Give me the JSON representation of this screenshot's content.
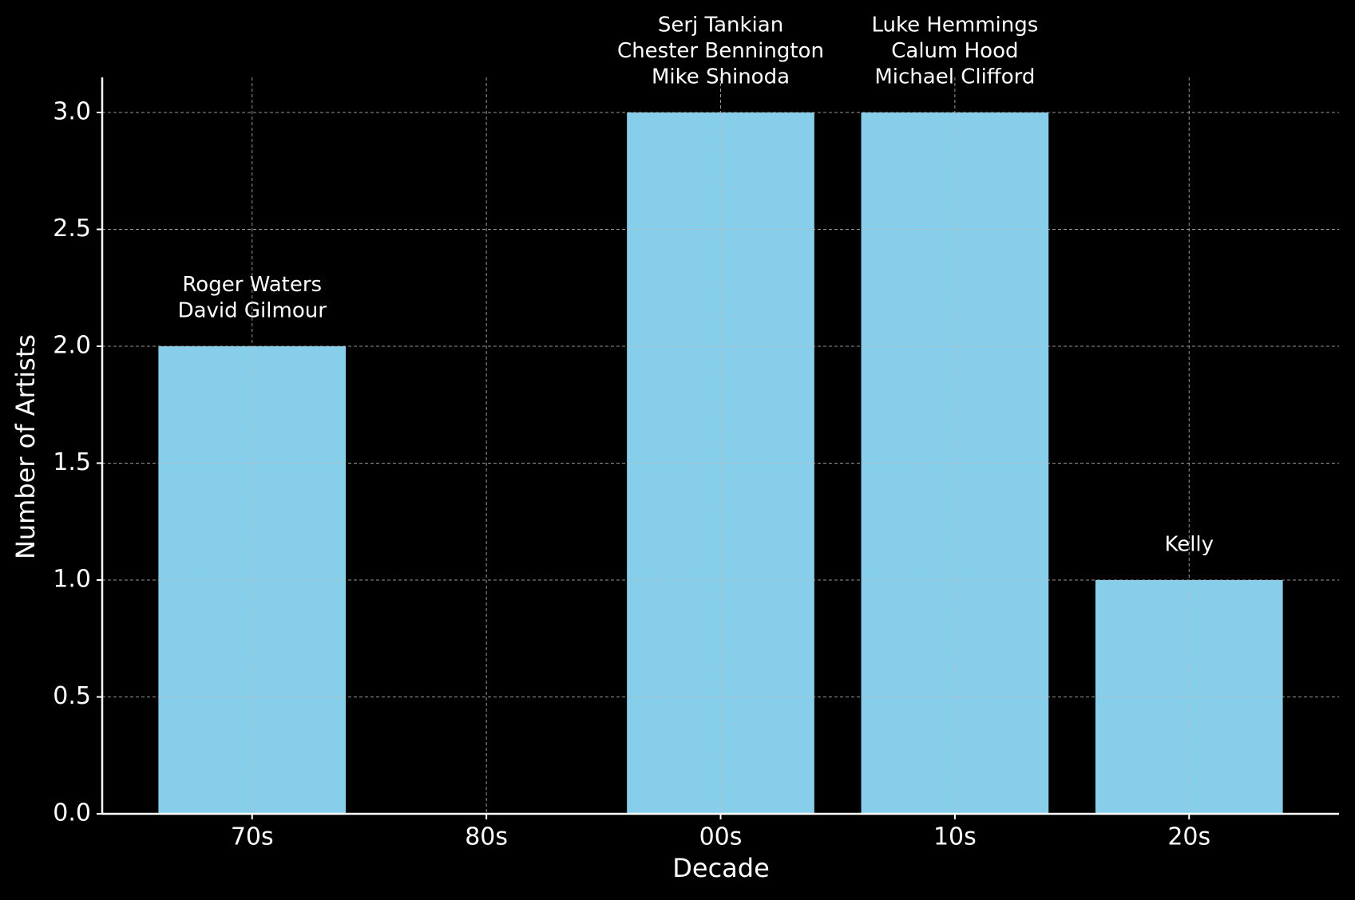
{
  "chart_data": {
    "type": "bar",
    "x_label": "Decade",
    "y_label": "Number of Artists",
    "categories": [
      "70s",
      "80s",
      "00s",
      "10s",
      "20s"
    ],
    "values": [
      2,
      0,
      3,
      3,
      1
    ],
    "bar_labels": [
      [
        "Roger Waters",
        "David Gilmour"
      ],
      [],
      [
        "Serj Tankian",
        "Chester Bennington",
        "Mike Shinoda"
      ],
      [
        "Luke Hemmings",
        "Calum Hood",
        "Michael Clifford"
      ],
      [
        "Kelly"
      ]
    ],
    "color": "#87ceeb",
    "ylim": [
      0,
      3.15
    ],
    "yticks": [
      {
        "value": 0,
        "label": "0.0"
      },
      0.5,
      {
        "value": 1,
        "label": "1.0"
      },
      1.5,
      {
        "value": 2,
        "label": "2.0"
      },
      2.5,
      {
        "value": 3,
        "label": "3.0"
      }
    ],
    "grid": true
  }
}
